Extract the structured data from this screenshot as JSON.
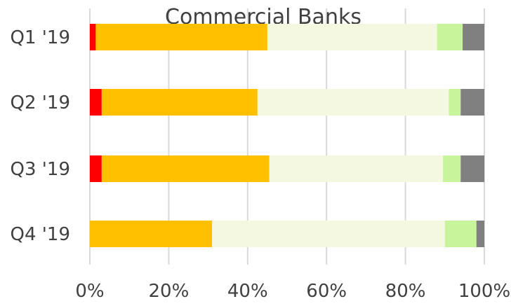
{
  "chart_data": {
    "type": "bar",
    "orientation": "horizontal",
    "stacked": true,
    "percent": true,
    "title": "Commercial Banks",
    "categories": [
      "Q1 '19",
      "Q2 '19",
      "Q3 '19",
      "Q4 '19"
    ],
    "series": [
      {
        "color": "#ff0000",
        "values": [
          1.5,
          3,
          3,
          0
        ]
      },
      {
        "color": "#ffc000",
        "values": [
          43.5,
          39.5,
          42.5,
          31
        ]
      },
      {
        "color": "#f5f8e0",
        "values": [
          43,
          48.5,
          44,
          59
        ]
      },
      {
        "color": "#c8f59b",
        "values": [
          6.5,
          3,
          4.5,
          8
        ]
      },
      {
        "color": "#808080",
        "values": [
          5.5,
          6,
          6,
          2
        ]
      }
    ],
    "xlim": [
      0,
      100
    ],
    "xticks": [
      "0%",
      "20%",
      "40%",
      "60%",
      "80%",
      "100%"
    ],
    "grid": true,
    "legend": "none"
  }
}
